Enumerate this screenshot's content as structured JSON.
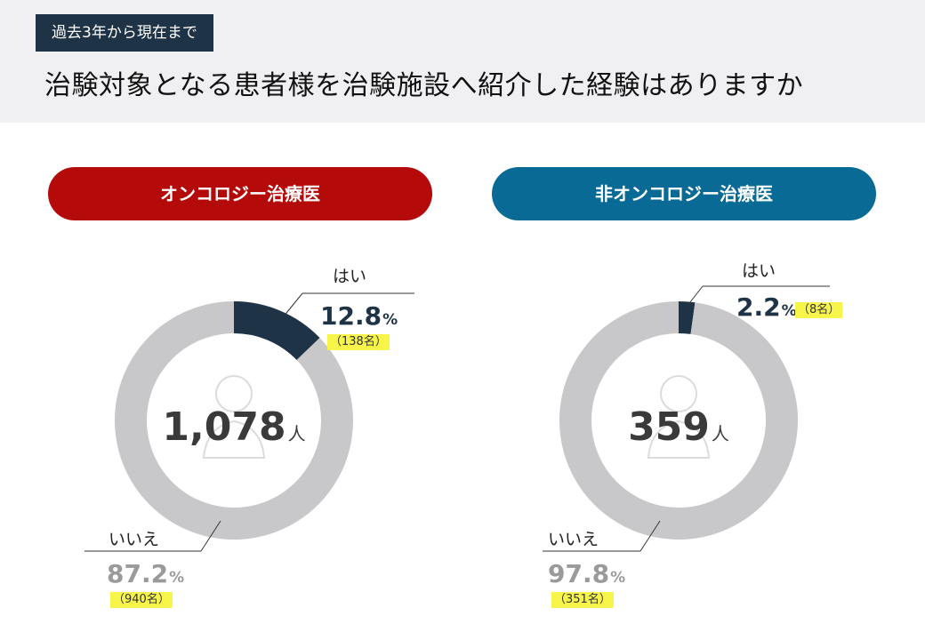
{
  "header": {
    "period": "過去3年から現在まで",
    "question": "治験対象となる患者様を治験施設へ紹介した経験はありますか"
  },
  "colors": {
    "yes": "#1f3347",
    "no": "#c8c8ca",
    "pill_left": "#b50a0a",
    "pill_right": "#086a95",
    "count_highlight": "#f7f44a"
  },
  "icon": "person-icon",
  "chart_data": [
    {
      "type": "pie",
      "title": "オンコロジー治療医",
      "total": "1,078",
      "total_unit": "人",
      "slices": [
        {
          "label": "はい",
          "percent": 12.8,
          "percent_text": "12.8",
          "count_text": "（138名）"
        },
        {
          "label": "いいえ",
          "percent": 87.2,
          "percent_text": "87.2",
          "count_text": "（940名）"
        }
      ],
      "unit": "%"
    },
    {
      "type": "pie",
      "title": "非オンコロジー治療医",
      "total": "359",
      "total_unit": "人",
      "slices": [
        {
          "label": "はい",
          "percent": 2.2,
          "percent_text": "2.2",
          "count_text": "（8名）"
        },
        {
          "label": "いいえ",
          "percent": 97.8,
          "percent_text": "97.8",
          "count_text": "（351名）"
        }
      ],
      "unit": "%"
    }
  ]
}
